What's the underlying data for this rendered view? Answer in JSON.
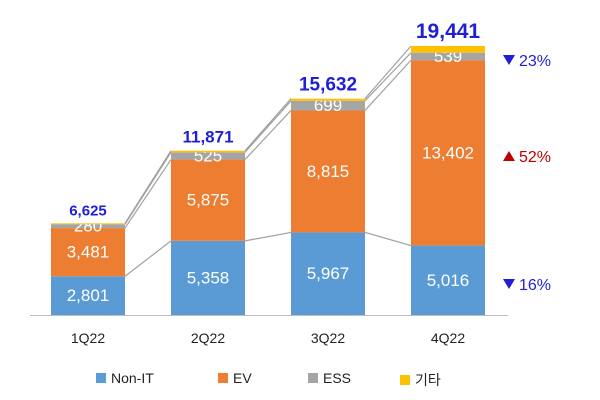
{
  "chart_data": {
    "type": "bar",
    "stacked": true,
    "categories": [
      "1Q22",
      "2Q22",
      "3Q22",
      "4Q22"
    ],
    "series": [
      {
        "name": "Non-IT",
        "color": "#5b9bd5",
        "values": [
          2801,
          5358,
          5967,
          5016
        ],
        "labels": [
          "2,801",
          "5,358",
          "5,967",
          "5,016"
        ]
      },
      {
        "name": "EV",
        "color": "#ed7d31",
        "values": [
          3481,
          5875,
          8815,
          13402
        ],
        "labels": [
          "3,481",
          "5,875",
          "8,815",
          "13,402"
        ]
      },
      {
        "name": "ESS",
        "color": "#a5a5a5",
        "values": [
          280,
          525,
          699,
          539
        ],
        "labels": [
          "280",
          "525",
          "699",
          "539"
        ]
      },
      {
        "name": "기타",
        "color": "#ffc000",
        "values": [
          63,
          113,
          151,
          484
        ]
      }
    ],
    "totals": [
      "6,625",
      "11,871",
      "15,632",
      "19,441"
    ],
    "changes": [
      {
        "series": "ESS",
        "direction": "down",
        "text": "23%",
        "color": "#1f1fd6"
      },
      {
        "series": "EV",
        "direction": "up",
        "text": "52%",
        "color": "#c00000"
      },
      {
        "series": "Non-IT",
        "direction": "down",
        "text": "16%",
        "color": "#1f1fd6"
      }
    ],
    "ylim": [
      0,
      19441
    ],
    "grid": false,
    "legend_position": "bottom"
  }
}
